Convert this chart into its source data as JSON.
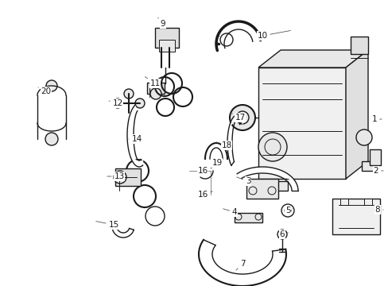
{
  "background_color": "#ffffff",
  "line_color": "#1a1a1a",
  "label_color": "#000000",
  "label_fontsize": 7.5,
  "fig_width": 4.89,
  "fig_height": 3.6,
  "dpi": 100
}
